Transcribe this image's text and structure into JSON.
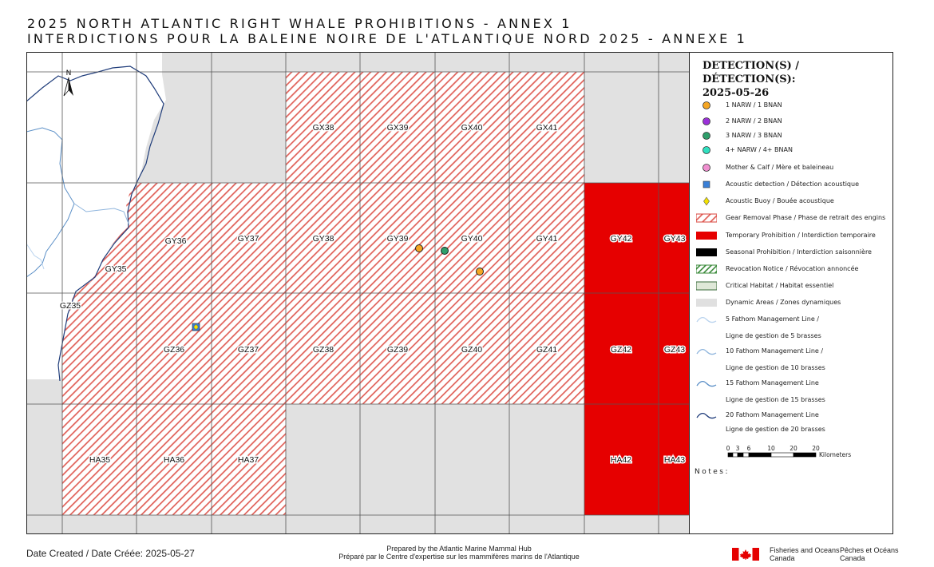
{
  "title": {
    "en": "2025 NORTH ATLANTIC RIGHT WHALE PROHIBITIONS - ANNEX 1",
    "fr": "INTERDICTIONS POUR LA BALEINE NOIRE DE L'ATLANTIQUE NORD 2025 - ANNEXE 1"
  },
  "map": {
    "north_arrow_label": "N",
    "grid_labels": [
      "GX38",
      "GX39",
      "GX40",
      "GX41",
      "GY35",
      "GY36",
      "GY37",
      "GY38",
      "GY39",
      "GY40",
      "GY41",
      "GY42",
      "GY43",
      "GZ35",
      "GZ36",
      "GZ37",
      "GZ38",
      "GZ39",
      "GZ40",
      "GZ41",
      "GZ42",
      "GZ43",
      "HA35",
      "HA36",
      "HA37",
      "HA42",
      "HA43"
    ],
    "gear_removal_zones": [
      "GX38",
      "GX39",
      "GX40",
      "GX41",
      "GY35",
      "GY36",
      "GY37",
      "GY38",
      "GY39",
      "GY40",
      "GY41",
      "GZ35",
      "GZ36",
      "GZ37",
      "GZ38",
      "GZ39",
      "GZ40",
      "GZ41",
      "HA35",
      "HA36",
      "HA37"
    ],
    "temporary_prohibition_zones": [
      "GY42",
      "GY43",
      "GZ42",
      "GZ43",
      "HA42",
      "HA43"
    ],
    "detections": [
      {
        "type": "1 NARW / 1 BNAN",
        "cell": "GY39",
        "color": "#f5a623"
      },
      {
        "type": "3 NARW / 3 BNAN",
        "cell": "GY40",
        "color": "#2e9e6a"
      },
      {
        "type": "1 NARW / 1 BNAN",
        "cell": "GY40",
        "color": "#f5a623"
      }
    ],
    "acoustic_buoys": [
      {
        "cell": "GZ36"
      }
    ]
  },
  "legend": {
    "header": "DETECTION(S) / DÉTECTION(S):",
    "date": "2025-05-26",
    "items": [
      {
        "symbol": "circle",
        "color": "#f5a623",
        "label": "1 NARW / 1 BNAN"
      },
      {
        "symbol": "circle",
        "color": "#9b30d9",
        "label": "2 NARW / 2 BNAN"
      },
      {
        "symbol": "circle",
        "color": "#2e9e6a",
        "label": "3 NARW / 3 BNAN"
      },
      {
        "symbol": "circle",
        "color": "#30e0c0",
        "label": "4+ NARW / 4+ BNAN"
      },
      {
        "symbol": "circle",
        "color": "#f08fd0",
        "label": "Mother & Calf / Mère et baleineau"
      },
      {
        "symbol": "square",
        "color": "#3a7fd6",
        "label": "Acoustic detection / Détection acoustique"
      },
      {
        "symbol": "diamond",
        "color": "#f3e200",
        "label": "Acoustic Buoy / Bouée acoustique"
      },
      {
        "symbol": "hatch-red",
        "color": "#d9413a",
        "label": "Gear Removal Phase / Phase de retrait des engins"
      },
      {
        "symbol": "solid",
        "color": "#e60000",
        "label": "Temporary Prohibition / Interdiction temporaire"
      },
      {
        "symbol": "solid",
        "color": "#000000",
        "label": "Seasonal Prohibition / Interdiction saisonnière"
      },
      {
        "symbol": "hatch-green",
        "color": "#3a8a3a",
        "label": "Revocation Notice / Révocation annoncée"
      },
      {
        "symbol": "box-green",
        "color": "#dfe8d8",
        "label": "Critical Habitat / Habitat essentiel"
      },
      {
        "symbol": "box-grey",
        "color": "#e0e0e0",
        "label": "Dynamic Areas / Zones dynamiques"
      },
      {
        "symbol": "line",
        "color": "#b9d3ee",
        "label": "5 Fathom Management Line /",
        "label2": "Ligne de gestion de 5 brasses"
      },
      {
        "symbol": "line",
        "color": "#8fb5dd",
        "label": "10 Fathom Management Line /",
        "label2": "Ligne de gestion de 10 brasses"
      },
      {
        "symbol": "line",
        "color": "#5b8fc7",
        "label": "15 Fathom Management Line",
        "label2": "Ligne de gestion de 15 brasses"
      },
      {
        "symbol": "line",
        "color": "#1f3c7a",
        "label": "20 Fathom Management Line",
        "label2": "Ligne de gestion de 20 brasses"
      }
    ],
    "scale": {
      "ticks": [
        "0",
        "3",
        "6",
        "10",
        "20",
        "20"
      ],
      "unit": "Kilometers"
    },
    "notes_label": "Notes:"
  },
  "footer": {
    "date_created": "Date Created / Date Créée: 2025-05-27",
    "prepared_en": "Prepared by the Atlantic Marine Mammal Hub",
    "prepared_fr": "Préparé par le Centre d'expertise sur les mammifères marins de l'Atlantique",
    "dfo_en_1": "Fisheries and Oceans",
    "dfo_en_2": "Canada",
    "dfo_fr_1": "Pêches et Océans",
    "dfo_fr_2": "Canada"
  }
}
